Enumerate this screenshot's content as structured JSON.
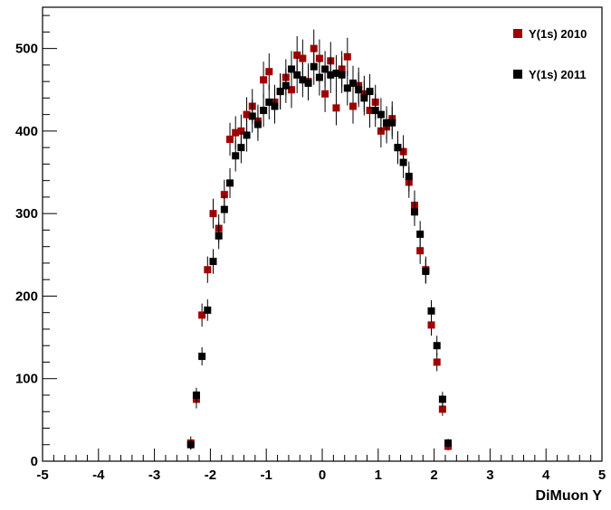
{
  "chart_data": {
    "type": "scatter",
    "xlabel": "DiMuon Y",
    "ylabel": "",
    "xlim": [
      -5,
      5
    ],
    "ylim": [
      0,
      550
    ],
    "x_ticks": [
      "-5",
      "-4",
      "-3",
      "-2",
      "-1",
      "0",
      "1",
      "2",
      "3",
      "4",
      "5"
    ],
    "y_ticks": [
      "0",
      "100",
      "200",
      "300",
      "400",
      "500"
    ],
    "grid": false,
    "legend_position": "top-right",
    "error_bars": true,
    "series": [
      {
        "name": "Υ(1s) 2010",
        "color": "#a00000",
        "x": [
          -2.35,
          -2.25,
          -2.15,
          -2.05,
          -1.95,
          -1.85,
          -1.75,
          -1.65,
          -1.55,
          -1.45,
          -1.35,
          -1.25,
          -1.15,
          -1.05,
          -0.95,
          -0.85,
          -0.75,
          -0.65,
          -0.55,
          -0.45,
          -0.35,
          -0.25,
          -0.15,
          -0.05,
          0.05,
          0.15,
          0.25,
          0.35,
          0.45,
          0.55,
          0.65,
          0.75,
          0.85,
          0.95,
          1.05,
          1.15,
          1.25,
          1.35,
          1.45,
          1.55,
          1.65,
          1.75,
          1.85,
          1.95,
          2.05,
          2.15,
          2.25,
          2.35
        ],
        "y": [
          22,
          75,
          177,
          232,
          300,
          282,
          323,
          390,
          398,
          400,
          420,
          430,
          412,
          462,
          472,
          435,
          448,
          465,
          450,
          492,
          488,
          460,
          500,
          488,
          445,
          485,
          428,
          475,
          490,
          430,
          455,
          445,
          425,
          435,
          400,
          405,
          415,
          380,
          375,
          338,
          310,
          255,
          232,
          165,
          120,
          63,
          18,
          0
        ],
        "err": [
          8,
          11,
          14,
          16,
          18,
          17,
          18,
          20,
          20,
          20,
          21,
          21,
          20,
          22,
          22,
          21,
          22,
          22,
          22,
          23,
          23,
          22,
          23,
          23,
          22,
          23,
          21,
          22,
          23,
          21,
          22,
          22,
          21,
          21,
          20,
          20,
          21,
          20,
          20,
          19,
          18,
          16,
          16,
          13,
          11,
          8,
          5,
          0
        ]
      },
      {
        "name": "Υ(1s) 2011",
        "color": "#000000",
        "x": [
          -2.35,
          -2.25,
          -2.15,
          -2.05,
          -1.95,
          -1.85,
          -1.75,
          -1.65,
          -1.55,
          -1.45,
          -1.35,
          -1.25,
          -1.15,
          -1.05,
          -0.95,
          -0.85,
          -0.75,
          -0.65,
          -0.55,
          -0.45,
          -0.35,
          -0.25,
          -0.15,
          -0.05,
          0.05,
          0.15,
          0.25,
          0.35,
          0.45,
          0.55,
          0.65,
          0.75,
          0.85,
          0.95,
          1.05,
          1.15,
          1.25,
          1.35,
          1.45,
          1.55,
          1.65,
          1.75,
          1.85,
          1.95,
          2.05,
          2.15,
          2.25,
          2.35
        ],
        "y": [
          20,
          80,
          127,
          183,
          242,
          273,
          305,
          337,
          370,
          380,
          395,
          418,
          408,
          425,
          435,
          430,
          448,
          455,
          475,
          468,
          462,
          458,
          478,
          465,
          475,
          468,
          470,
          468,
          452,
          458,
          450,
          440,
          448,
          425,
          420,
          410,
          410,
          380,
          362,
          345,
          302,
          275,
          230,
          182,
          140,
          75,
          22,
          0
        ],
        "err": [
          6,
          9,
          11,
          13,
          15,
          16,
          17,
          18,
          19,
          19,
          20,
          20,
          20,
          20,
          21,
          21,
          21,
          21,
          22,
          22,
          21,
          21,
          22,
          22,
          22,
          22,
          22,
          22,
          21,
          21,
          21,
          21,
          21,
          20,
          20,
          20,
          20,
          19,
          19,
          18,
          17,
          16,
          15,
          13,
          12,
          9,
          5,
          0
        ]
      }
    ]
  }
}
